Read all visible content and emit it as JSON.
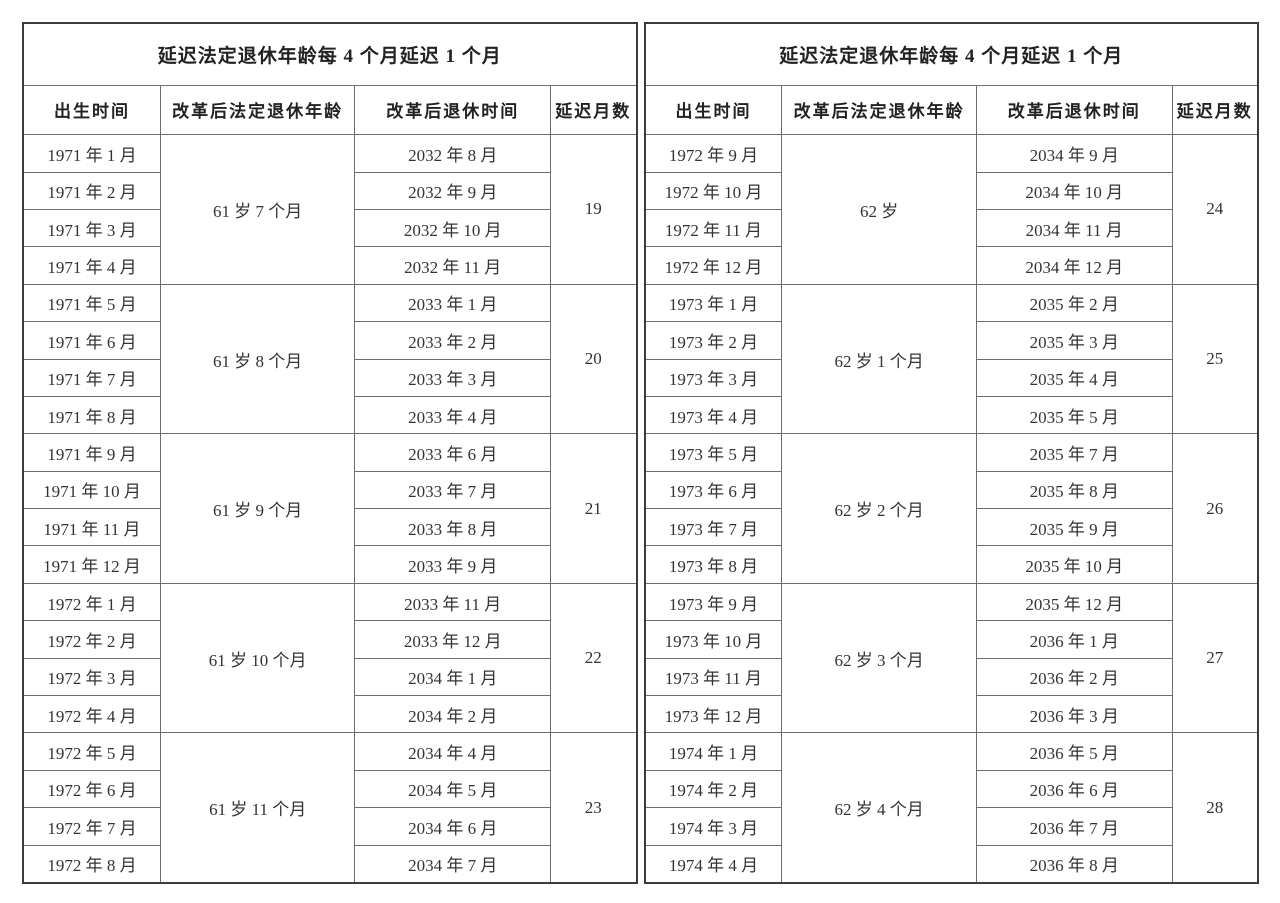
{
  "page": {
    "background": "#ffffff",
    "outer_border_color": "#3c3c3c",
    "grid_color": "#6e6e6e",
    "text_color": "#333333"
  },
  "tables": [
    {
      "title": "延迟法定退休年龄每 4 个月延迟 1 个月",
      "columns": [
        "出生时间",
        "改革后法定退休年龄",
        "改革后退休时间",
        "延迟月数"
      ],
      "groups": [
        {
          "births": [
            "1971 年 1 月",
            "1971 年 2 月",
            "1971 年 3 月",
            "1971 年 4 月"
          ],
          "age": "61 岁 7 个月",
          "retirements": [
            "2032 年 8 月",
            "2032 年 9 月",
            "2032 年 10 月",
            "2032 年 11 月"
          ],
          "delay": "19"
        },
        {
          "births": [
            "1971 年 5 月",
            "1971 年 6 月",
            "1971 年 7 月",
            "1971 年 8 月"
          ],
          "age": "61 岁 8 个月",
          "retirements": [
            "2033 年 1 月",
            "2033 年 2 月",
            "2033 年 3 月",
            "2033 年 4 月"
          ],
          "delay": "20"
        },
        {
          "births": [
            "1971 年 9 月",
            "1971 年 10 月",
            "1971 年 11 月",
            "1971 年 12 月"
          ],
          "age": "61 岁 9 个月",
          "retirements": [
            "2033 年 6 月",
            "2033 年 7 月",
            "2033 年 8 月",
            "2033 年 9 月"
          ],
          "delay": "21"
        },
        {
          "births": [
            "1972 年 1 月",
            "1972 年 2 月",
            "1972 年 3 月",
            "1972 年 4 月"
          ],
          "age": "61 岁 10 个月",
          "retirements": [
            "2033 年 11 月",
            "2033 年 12 月",
            "2034 年 1 月",
            "2034 年 2 月"
          ],
          "delay": "22"
        },
        {
          "births": [
            "1972 年 5 月",
            "1972 年 6 月",
            "1972 年 7 月",
            "1972 年 8 月"
          ],
          "age": "61 岁 11 个月",
          "retirements": [
            "2034 年 4 月",
            "2034 年 5 月",
            "2034 年 6 月",
            "2034 年 7 月"
          ],
          "delay": "23"
        }
      ]
    },
    {
      "title": "延迟法定退休年龄每 4 个月延迟 1 个月",
      "columns": [
        "出生时间",
        "改革后法定退休年龄",
        "改革后退休时间",
        "延迟月数"
      ],
      "groups": [
        {
          "births": [
            "1972 年 9 月",
            "1972 年 10 月",
            "1972 年 11 月",
            "1972 年 12 月"
          ],
          "age": "62 岁",
          "retirements": [
            "2034 年 9 月",
            "2034 年 10 月",
            "2034 年 11 月",
            "2034 年 12 月"
          ],
          "delay": "24"
        },
        {
          "births": [
            "1973 年 1 月",
            "1973 年 2 月",
            "1973 年 3 月",
            "1973 年 4 月"
          ],
          "age": "62 岁 1 个月",
          "retirements": [
            "2035 年 2 月",
            "2035 年 3 月",
            "2035 年 4 月",
            "2035 年 5 月"
          ],
          "delay": "25"
        },
        {
          "births": [
            "1973 年 5 月",
            "1973 年 6 月",
            "1973 年 7 月",
            "1973 年 8 月"
          ],
          "age": "62 岁 2 个月",
          "retirements": [
            "2035 年 7 月",
            "2035 年 8 月",
            "2035 年 9 月",
            "2035 年 10 月"
          ],
          "delay": "26"
        },
        {
          "births": [
            "1973 年 9 月",
            "1973 年 10 月",
            "1973 年 11 月",
            "1973 年 12 月"
          ],
          "age": "62 岁 3 个月",
          "retirements": [
            "2035 年 12 月",
            "2036 年 1 月",
            "2036 年 2 月",
            "2036 年 3 月"
          ],
          "delay": "27"
        },
        {
          "births": [
            "1974 年 1 月",
            "1974 年 2 月",
            "1974 年 3 月",
            "1974 年 4 月"
          ],
          "age": "62 岁 4 个月",
          "retirements": [
            "2036 年 5 月",
            "2036 年 6 月",
            "2036 年 7 月",
            "2036 年 8 月"
          ],
          "delay": "28"
        }
      ]
    }
  ]
}
